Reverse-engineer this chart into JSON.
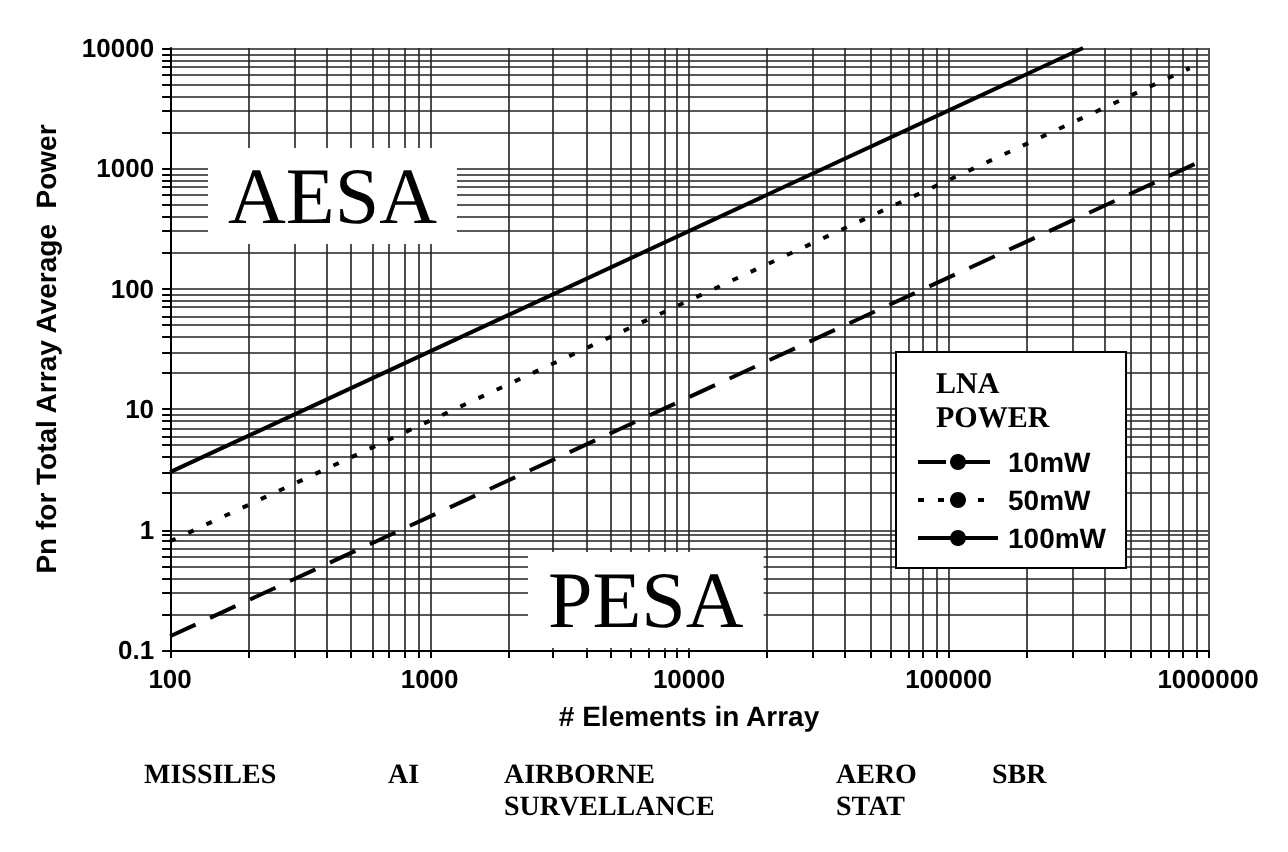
{
  "chart_data": {
    "type": "line",
    "xlabel": "# Elements in Array",
    "ylabel": "Pn for Total Array Average  Power",
    "legend_title": "LNA POWER",
    "log": "xy",
    "grid": true,
    "legend": "bottom right",
    "xlim": [
      100,
      1000000
    ],
    "ylim": [
      0.1,
      10000
    ],
    "xticks": [
      100,
      1000,
      10000,
      100000,
      1000000
    ],
    "yticks": [
      0.1,
      1,
      10,
      100,
      1000,
      10000
    ],
    "series": [
      {
        "name": "10mW",
        "color": "#000000",
        "line_style": "dashed",
        "x": [
          100,
          900000
        ],
        "values": [
          0.13,
          1100
        ]
      },
      {
        "name": "50mW",
        "color": "#000000",
        "line_style": "dotted",
        "x": [
          100,
          850000
        ],
        "values": [
          0.8,
          6800
        ]
      },
      {
        "name": "100mW",
        "color": "#000000",
        "line_style": "solid",
        "x": [
          100,
          330000
        ],
        "values": [
          3,
          10000
        ]
      }
    ],
    "annotations": [
      "AESA",
      "PESA",
      "MISSILES",
      "AI",
      "AIRBORNE\nSURVELLANCE",
      "AERO\nSTAT",
      "SBR"
    ]
  }
}
